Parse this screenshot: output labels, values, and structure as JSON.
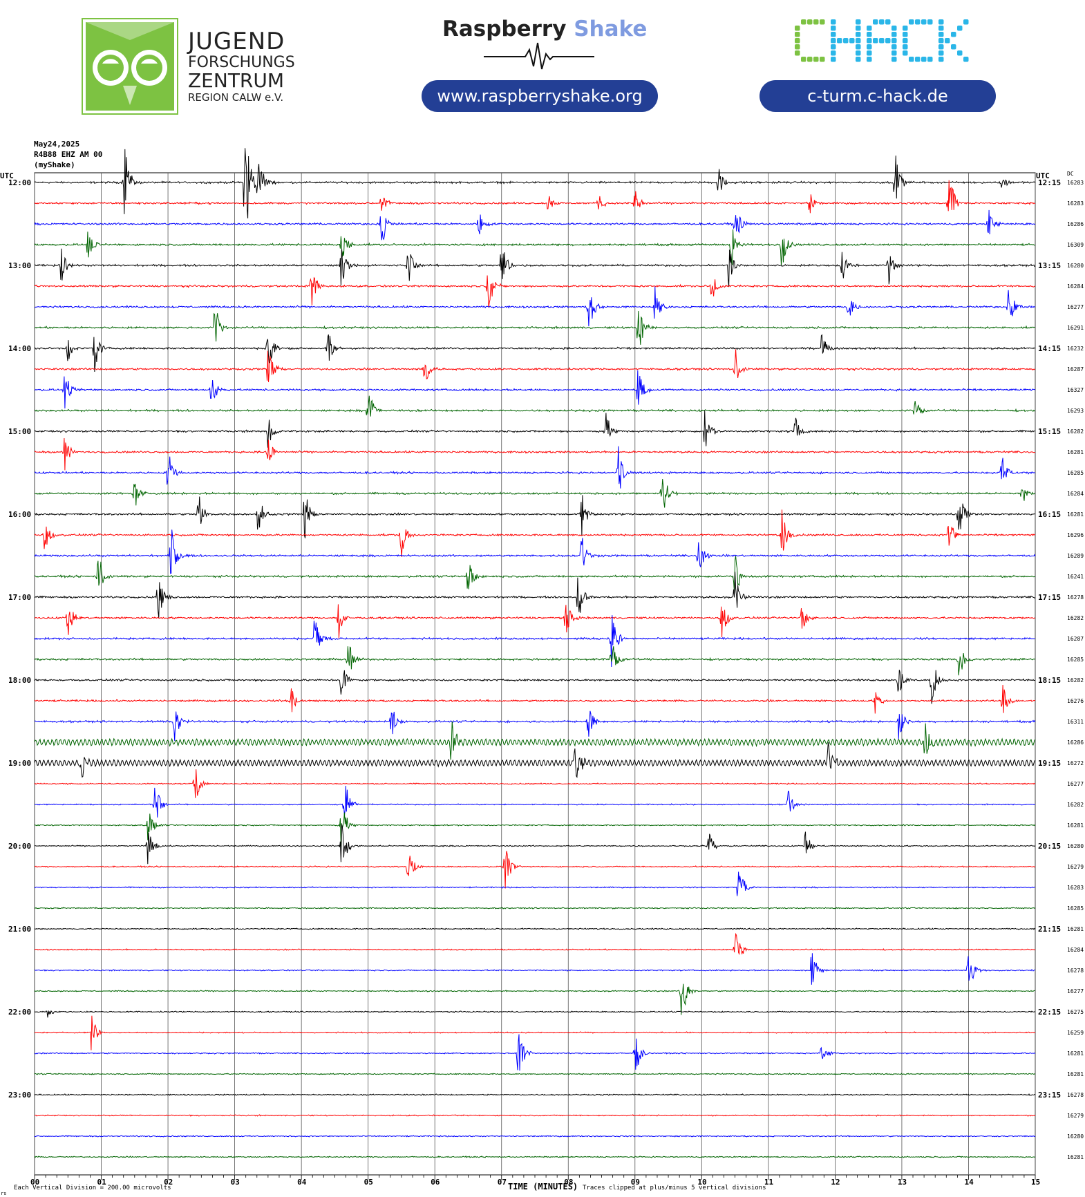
{
  "header": {
    "jfz_logo": {
      "line1": "JUGEND",
      "line2": "FORSCHUNGS",
      "line3": "ZENTRUM",
      "line4": "REGION CALW e.V."
    },
    "rs_logo": {
      "word1": "Raspberry",
      "word2": "Shake"
    },
    "chack_logo": "CHACK",
    "rs_url": "www.raspberryshake.org",
    "chack_url": "c-turm.c-hack.de"
  },
  "colors": {
    "accent_green": "#7dc242",
    "pill_blue": "#233f95",
    "rs_shake_blue": "#7f9be0",
    "chack_green": "#7dc242",
    "chack_cyan": "#2ab6e8",
    "trace_colors": [
      "#000000",
      "#ff0000",
      "#0000ff",
      "#006400"
    ]
  },
  "chart_data": {
    "type": "line",
    "title": "May24,2025",
    "station": "R4B88 EHZ AM 00",
    "network": "(myShake)",
    "left_axis_label": "UTC",
    "right_axis_label": "UTC",
    "dc_label": "DC",
    "xlabel": "TIME (MINUTES)",
    "x_ticks": [
      "00",
      "01",
      "02",
      "03",
      "04",
      "05",
      "06",
      "07",
      "08",
      "09",
      "10",
      "11",
      "12",
      "13",
      "14",
      "15"
    ],
    "xlim": [
      0,
      15
    ],
    "footer_left": "Each Vertical Division =  200.00 microvolts",
    "footer_right": "Traces clipped at plus/minus 5 vertical divisions",
    "footer_corner": "rs",
    "left_hour_labels": [
      "12:00",
      "13:00",
      "14:00",
      "15:00",
      "16:00",
      "17:00",
      "18:00",
      "19:00",
      "20:00",
      "21:00",
      "22:00",
      "23:00"
    ],
    "right_hour_labels": [
      "12:15",
      "13:15",
      "14:15",
      "15:15",
      "16:15",
      "17:15",
      "18:15",
      "19:15",
      "20:15",
      "21:15",
      "22:15",
      "23:15"
    ],
    "dc_values": [
      16283,
      16283,
      16286,
      16309,
      16280,
      16284,
      16277,
      16291,
      16232,
      16287,
      16327,
      16293,
      16282,
      16281,
      16285,
      16284,
      16281,
      16296,
      16289,
      16241,
      16278,
      16282,
      16287,
      16285,
      16282,
      16276,
      16311,
      16286,
      16272,
      16277,
      16282,
      16281,
      16280,
      16279,
      16283,
      16285,
      16281,
      16284,
      16278,
      16277,
      16275,
      16259,
      16281,
      16281,
      16278,
      16279,
      16280,
      16281
    ],
    "events": [
      {
        "row": 0,
        "min": 1.35,
        "amp": 60
      },
      {
        "row": 0,
        "min": 3.15,
        "amp": 120
      },
      {
        "row": 0,
        "min": 3.35,
        "amp": 55
      },
      {
        "row": 0,
        "min": 10.25,
        "amp": 25
      },
      {
        "row": 0,
        "min": 12.9,
        "amp": 45
      },
      {
        "row": 0,
        "min": 14.5,
        "amp": 15
      },
      {
        "row": 1,
        "min": 5.2,
        "amp": 18
      },
      {
        "row": 1,
        "min": 7.7,
        "amp": 20
      },
      {
        "row": 1,
        "min": 8.45,
        "amp": 18
      },
      {
        "row": 1,
        "min": 9.0,
        "amp": 25
      },
      {
        "row": 1,
        "min": 11.6,
        "amp": 22
      },
      {
        "row": 1,
        "min": 13.7,
        "amp": 60
      },
      {
        "row": 2,
        "min": 5.2,
        "amp": 40
      },
      {
        "row": 2,
        "min": 6.65,
        "amp": 25
      },
      {
        "row": 2,
        "min": 10.5,
        "amp": 35
      },
      {
        "row": 2,
        "min": 14.3,
        "amp": 25
      },
      {
        "row": 3,
        "min": 0.8,
        "amp": 25
      },
      {
        "row": 3,
        "min": 4.6,
        "amp": 30
      },
      {
        "row": 3,
        "min": 10.45,
        "amp": 35
      },
      {
        "row": 3,
        "min": 11.2,
        "amp": 40
      },
      {
        "row": 4,
        "min": 0.4,
        "amp": 30
      },
      {
        "row": 4,
        "min": 4.6,
        "amp": 40
      },
      {
        "row": 4,
        "min": 5.6,
        "amp": 35
      },
      {
        "row": 4,
        "min": 7.0,
        "amp": 45
      },
      {
        "row": 4,
        "min": 10.4,
        "amp": 35
      },
      {
        "row": 4,
        "min": 12.1,
        "amp": 30
      },
      {
        "row": 4,
        "min": 12.8,
        "amp": 35
      },
      {
        "row": 5,
        "min": 4.15,
        "amp": 35
      },
      {
        "row": 5,
        "min": 6.8,
        "amp": 40
      },
      {
        "row": 5,
        "min": 10.15,
        "amp": 25
      },
      {
        "row": 6,
        "min": 8.3,
        "amp": 50
      },
      {
        "row": 6,
        "min": 9.3,
        "amp": 35
      },
      {
        "row": 6,
        "min": 12.2,
        "amp": 25
      },
      {
        "row": 6,
        "min": 14.6,
        "amp": 45
      },
      {
        "row": 7,
        "min": 2.7,
        "amp": 40
      },
      {
        "row": 7,
        "min": 9.05,
        "amp": 45
      },
      {
        "row": 8,
        "min": 0.5,
        "amp": 25
      },
      {
        "row": 8,
        "min": 0.9,
        "amp": 35
      },
      {
        "row": 8,
        "min": 3.5,
        "amp": 40
      },
      {
        "row": 8,
        "min": 4.4,
        "amp": 28
      },
      {
        "row": 8,
        "min": 11.8,
        "amp": 30
      },
      {
        "row": 9,
        "min": 3.5,
        "amp": 35
      },
      {
        "row": 9,
        "min": 5.85,
        "amp": 30
      },
      {
        "row": 9,
        "min": 10.5,
        "amp": 35
      },
      {
        "row": 10,
        "min": 0.45,
        "amp": 30
      },
      {
        "row": 10,
        "min": 2.65,
        "amp": 35
      },
      {
        "row": 10,
        "min": 9.05,
        "amp": 45
      },
      {
        "row": 11,
        "min": 5.0,
        "amp": 40
      },
      {
        "row": 11,
        "min": 13.2,
        "amp": 25
      },
      {
        "row": 12,
        "min": 3.5,
        "amp": 30
      },
      {
        "row": 12,
        "min": 8.55,
        "amp": 40
      },
      {
        "row": 12,
        "min": 10.05,
        "amp": 40
      },
      {
        "row": 12,
        "min": 11.4,
        "amp": 25
      },
      {
        "row": 13,
        "min": 0.45,
        "amp": 30
      },
      {
        "row": 13,
        "min": 3.5,
        "amp": 25
      },
      {
        "row": 14,
        "min": 2.0,
        "amp": 40
      },
      {
        "row": 14,
        "min": 8.75,
        "amp": 40
      },
      {
        "row": 14,
        "min": 14.5,
        "amp": 35
      },
      {
        "row": 15,
        "min": 1.5,
        "amp": 25
      },
      {
        "row": 15,
        "min": 9.4,
        "amp": 45
      },
      {
        "row": 15,
        "min": 14.8,
        "amp": 20
      },
      {
        "row": 16,
        "min": 2.45,
        "amp": 40
      },
      {
        "row": 16,
        "min": 3.35,
        "amp": 35
      },
      {
        "row": 16,
        "min": 4.05,
        "amp": 40
      },
      {
        "row": 16,
        "min": 8.2,
        "amp": 45
      },
      {
        "row": 16,
        "min": 13.85,
        "amp": 50
      },
      {
        "row": 17,
        "min": 0.15,
        "amp": 30
      },
      {
        "row": 17,
        "min": 5.5,
        "amp": 35
      },
      {
        "row": 17,
        "min": 11.2,
        "amp": 40
      },
      {
        "row": 17,
        "min": 13.7,
        "amp": 30
      },
      {
        "row": 18,
        "min": 2.05,
        "amp": 45
      },
      {
        "row": 18,
        "min": 8.2,
        "amp": 35
      },
      {
        "row": 18,
        "min": 9.95,
        "amp": 35
      },
      {
        "row": 19,
        "min": 0.95,
        "amp": 45
      },
      {
        "row": 19,
        "min": 6.5,
        "amp": 35
      },
      {
        "row": 19,
        "min": 10.5,
        "amp": 40
      },
      {
        "row": 20,
        "min": 1.85,
        "amp": 40
      },
      {
        "row": 20,
        "min": 8.15,
        "amp": 40
      },
      {
        "row": 20,
        "min": 10.5,
        "amp": 40
      },
      {
        "row": 21,
        "min": 0.5,
        "amp": 30
      },
      {
        "row": 21,
        "min": 4.55,
        "amp": 40
      },
      {
        "row": 21,
        "min": 7.95,
        "amp": 40
      },
      {
        "row": 21,
        "min": 10.3,
        "amp": 35
      },
      {
        "row": 21,
        "min": 11.5,
        "amp": 25
      },
      {
        "row": 22,
        "min": 4.2,
        "amp": 45
      },
      {
        "row": 22,
        "min": 8.65,
        "amp": 50
      },
      {
        "row": 23,
        "min": 4.7,
        "amp": 35
      },
      {
        "row": 23,
        "min": 8.65,
        "amp": 40
      },
      {
        "row": 23,
        "min": 13.85,
        "amp": 40
      },
      {
        "row": 24,
        "min": 4.6,
        "amp": 35
      },
      {
        "row": 24,
        "min": 13.45,
        "amp": 40
      },
      {
        "row": 24,
        "min": 12.95,
        "amp": 35
      },
      {
        "row": 25,
        "min": 3.85,
        "amp": 25
      },
      {
        "row": 25,
        "min": 12.6,
        "amp": 20
      },
      {
        "row": 25,
        "min": 14.5,
        "amp": 35
      },
      {
        "row": 26,
        "min": 2.1,
        "amp": 30
      },
      {
        "row": 26,
        "min": 5.35,
        "amp": 30
      },
      {
        "row": 26,
        "min": 8.3,
        "amp": 30
      },
      {
        "row": 26,
        "min": 12.95,
        "amp": 40
      },
      {
        "row": 27,
        "min": 6.25,
        "amp": 35
      },
      {
        "row": 27,
        "min": 13.35,
        "amp": 40
      },
      {
        "row": 28,
        "min": 0.7,
        "amp": 25
      },
      {
        "row": 28,
        "min": 8.1,
        "amp": 40
      },
      {
        "row": 28,
        "min": 11.9,
        "amp": 30
      },
      {
        "row": 29,
        "min": 2.4,
        "amp": 35
      },
      {
        "row": 30,
        "min": 1.8,
        "amp": 40
      },
      {
        "row": 30,
        "min": 4.65,
        "amp": 45
      },
      {
        "row": 30,
        "min": 11.3,
        "amp": 25
      },
      {
        "row": 31,
        "min": 1.7,
        "amp": 30
      },
      {
        "row": 31,
        "min": 4.6,
        "amp": 45
      },
      {
        "row": 32,
        "min": 1.7,
        "amp": 35
      },
      {
        "row": 32,
        "min": 4.6,
        "amp": 45
      },
      {
        "row": 32,
        "min": 10.1,
        "amp": 25
      },
      {
        "row": 32,
        "min": 11.55,
        "amp": 25
      },
      {
        "row": 33,
        "min": 5.6,
        "amp": 30
      },
      {
        "row": 33,
        "min": 7.05,
        "amp": 40
      },
      {
        "row": 34,
        "min": 10.55,
        "amp": 45
      },
      {
        "row": 37,
        "min": 10.5,
        "amp": 40
      },
      {
        "row": 38,
        "min": 11.65,
        "amp": 35
      },
      {
        "row": 38,
        "min": 14.0,
        "amp": 45
      },
      {
        "row": 39,
        "min": 9.7,
        "amp": 50
      },
      {
        "row": 40,
        "min": 0.2,
        "amp": 12
      },
      {
        "row": 41,
        "min": 0.85,
        "amp": 30
      },
      {
        "row": 42,
        "min": 7.25,
        "amp": 50
      },
      {
        "row": 42,
        "min": 9.0,
        "amp": 40
      },
      {
        "row": 42,
        "min": 11.8,
        "amp": 20
      }
    ]
  }
}
